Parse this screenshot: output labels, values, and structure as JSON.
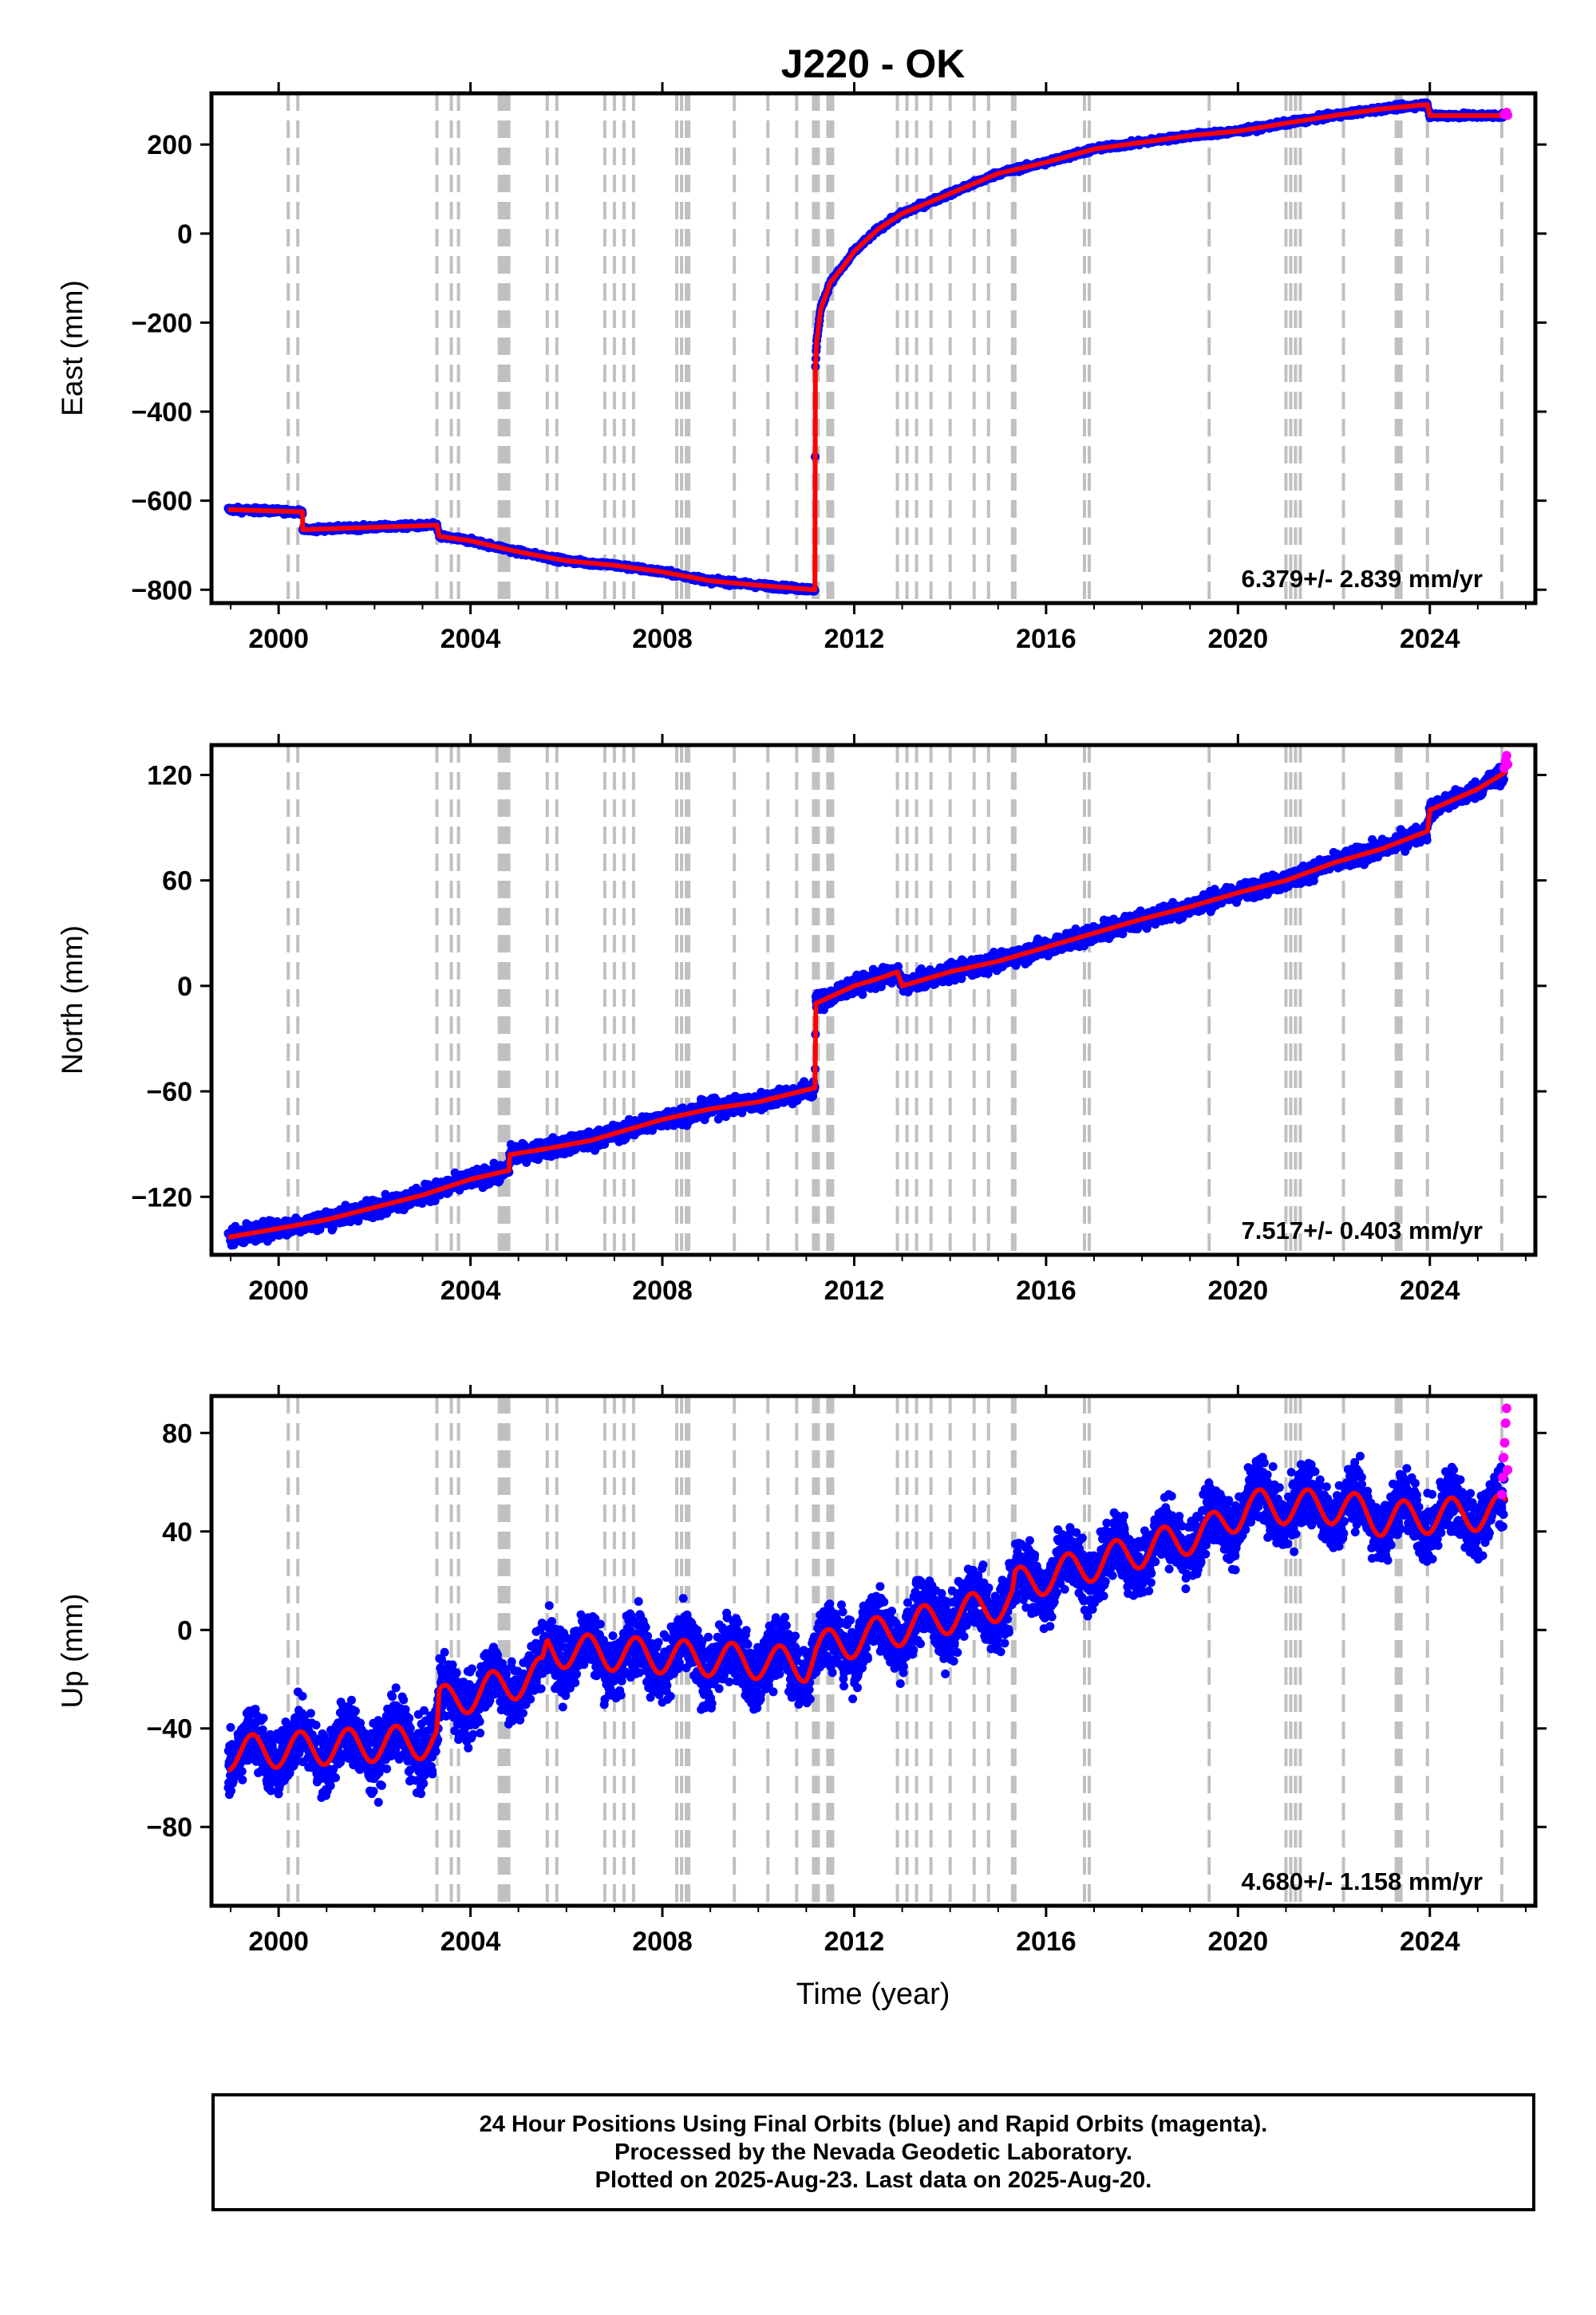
{
  "title": "J220 - OK",
  "xlabel": "Time (year)",
  "x_ticks": [
    2000,
    2004,
    2008,
    2012,
    2016,
    2020,
    2024
  ],
  "xlim": [
    1998.6,
    2026.2
  ],
  "colors": {
    "final_orbits": "#0000ff",
    "rapid_orbits": "#ff00ff",
    "model": "#ff0000",
    "event_lines": "#c0c0c0"
  },
  "event_lines_years": [
    2000.2,
    2000.4,
    2003.3,
    2003.6,
    2003.75,
    2004.6,
    2004.65,
    2004.7,
    2004.75,
    2004.8,
    2005.6,
    2005.8,
    2006.8,
    2007.0,
    2007.2,
    2007.4,
    2008.3,
    2008.4,
    2008.5,
    2008.55,
    2009.5,
    2010.2,
    2010.8,
    2011.15,
    2011.2,
    2011.25,
    2011.45,
    2011.5,
    2011.55,
    2012.9,
    2013.1,
    2013.3,
    2013.6,
    2014.0,
    2014.5,
    2014.8,
    2015.3,
    2015.35,
    2016.8,
    2016.9,
    2019.4,
    2021.0,
    2021.1,
    2021.2,
    2021.3,
    2022.2,
    2023.3,
    2023.35,
    2023.4,
    2023.95,
    2025.5
  ],
  "chart_data": [
    {
      "type": "scatter",
      "panel": "East",
      "ylabel": "East (mm)",
      "ylim": [
        -830,
        315
      ],
      "y_ticks": [
        -800,
        -600,
        -400,
        -200,
        0,
        200
      ],
      "velocity": "6.379+/- 2.839 mm/yr",
      "model_line": [
        [
          1998.95,
          -620
        ],
        [
          2000.5,
          -625
        ],
        [
          2000.5,
          -665
        ],
        [
          2003.3,
          -655
        ],
        [
          2003.35,
          -680
        ],
        [
          2004.0,
          -690
        ],
        [
          2005.0,
          -715
        ],
        [
          2006.0,
          -735
        ],
        [
          2007.0,
          -745
        ],
        [
          2008.0,
          -760
        ],
        [
          2009.0,
          -780
        ],
        [
          2010.0,
          -790
        ],
        [
          2011.18,
          -800
        ],
        [
          2011.19,
          -300
        ],
        [
          2011.22,
          -240
        ],
        [
          2011.3,
          -170
        ],
        [
          2011.5,
          -110
        ],
        [
          2011.8,
          -70
        ],
        [
          2012.0,
          -40
        ],
        [
          2012.5,
          10
        ],
        [
          2013.0,
          45
        ],
        [
          2014.0,
          90
        ],
        [
          2015.0,
          135
        ],
        [
          2016.0,
          160
        ],
        [
          2017.0,
          190
        ],
        [
          2018.0,
          205
        ],
        [
          2019.0,
          220
        ],
        [
          2020.0,
          230
        ],
        [
          2021.0,
          248
        ],
        [
          2022.0,
          265
        ],
        [
          2023.0,
          280
        ],
        [
          2023.95,
          290
        ],
        [
          2024.0,
          265
        ],
        [
          2025.6,
          265
        ]
      ],
      "rapid_points": [
        [
          2025.55,
          268
        ],
        [
          2025.6,
          272
        ],
        [
          2025.62,
          266
        ]
      ]
    },
    {
      "type": "scatter",
      "panel": "North",
      "ylabel": "North (mm)",
      "ylim": [
        -153,
        137
      ],
      "y_ticks": [
        -120,
        -60,
        0,
        60,
        120
      ],
      "velocity": "7.517+/- 0.403 mm/yr",
      "model_line": [
        [
          1998.95,
          -143
        ],
        [
          2000.0,
          -138
        ],
        [
          2001.0,
          -133
        ],
        [
          2002.0,
          -126
        ],
        [
          2003.0,
          -119
        ],
        [
          2004.0,
          -110
        ],
        [
          2004.8,
          -105
        ],
        [
          2004.82,
          -96
        ],
        [
          2005.5,
          -93
        ],
        [
          2006.5,
          -88
        ],
        [
          2007.5,
          -80
        ],
        [
          2008.0,
          -76
        ],
        [
          2009.0,
          -70
        ],
        [
          2010.0,
          -66
        ],
        [
          2011.18,
          -58
        ],
        [
          2011.2,
          -10
        ],
        [
          2012.0,
          0
        ],
        [
          2012.6,
          5
        ],
        [
          2012.9,
          8
        ],
        [
          2013.0,
          0
        ],
        [
          2014.0,
          8
        ],
        [
          2015.0,
          14
        ],
        [
          2016.0,
          22
        ],
        [
          2017.0,
          30
        ],
        [
          2018.0,
          38
        ],
        [
          2019.0,
          45
        ],
        [
          2020.0,
          53
        ],
        [
          2021.0,
          60
        ],
        [
          2022.0,
          70
        ],
        [
          2023.0,
          78
        ],
        [
          2023.95,
          88
        ],
        [
          2024.0,
          100
        ],
        [
          2025.0,
          112
        ],
        [
          2025.6,
          122
        ]
      ],
      "rapid_points": [
        [
          2025.55,
          124
        ],
        [
          2025.58,
          128
        ],
        [
          2025.6,
          131
        ],
        [
          2025.62,
          126
        ]
      ]
    },
    {
      "type": "scatter",
      "panel": "Up",
      "ylabel": "Up (mm)",
      "ylim": [
        -112,
        95
      ],
      "y_ticks": [
        -80,
        -40,
        0,
        40,
        80
      ],
      "velocity": "4.680+/- 1.158 mm/yr",
      "trend_line": [
        [
          1998.95,
          -50
        ],
        [
          2003.3,
          -45
        ],
        [
          2003.35,
          -30
        ],
        [
          2005.5,
          -18
        ],
        [
          2005.6,
          -8
        ],
        [
          2011.0,
          -14
        ],
        [
          2011.2,
          -8
        ],
        [
          2015.3,
          12
        ],
        [
          2015.35,
          18
        ],
        [
          2019.4,
          40
        ],
        [
          2020.2,
          50
        ],
        [
          2022.2,
          50
        ],
        [
          2023.0,
          45
        ],
        [
          2025.6,
          48
        ]
      ],
      "seasonal_amplitude": 7,
      "rapid_points": [
        [
          2025.5,
          55
        ],
        [
          2025.52,
          62
        ],
        [
          2025.54,
          70
        ],
        [
          2025.56,
          76
        ],
        [
          2025.58,
          84
        ],
        [
          2025.6,
          90
        ],
        [
          2025.62,
          65
        ]
      ]
    }
  ],
  "footer": {
    "line1": "24 Hour Positions Using Final Orbits (blue) and Rapid Orbits (magenta).",
    "line2": "Processed by the Nevada Geodetic Laboratory.",
    "line3": "Plotted on 2025-Aug-23. Last data on 2025-Aug-20."
  }
}
